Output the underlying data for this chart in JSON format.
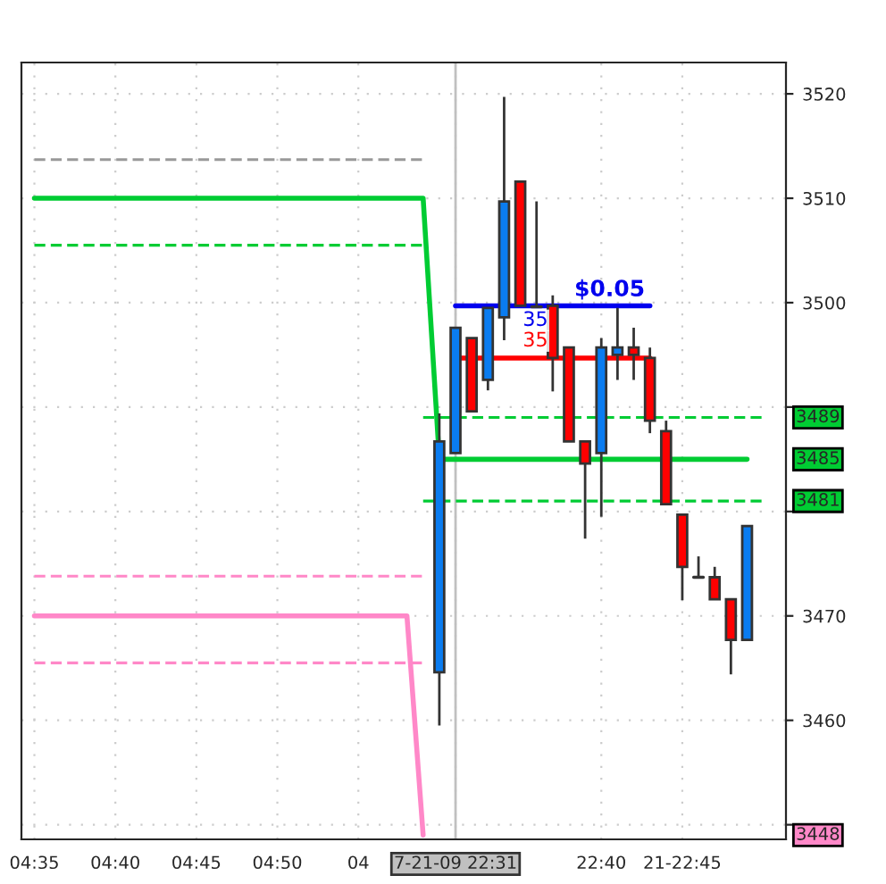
{
  "chart_data": {
    "type": "candlestick",
    "categories": [
      "04:35",
      null,
      null,
      null,
      null,
      "04:40",
      null,
      null,
      null,
      null,
      "04:45",
      null,
      null,
      null,
      null,
      "04:50",
      null,
      null,
      null,
      null,
      "04",
      null,
      null,
      null,
      null,
      null,
      "7-21-09 22:31",
      null,
      null,
      null,
      null,
      null,
      null,
      null,
      null,
      "22:40",
      null,
      null,
      null,
      null,
      "21-22:45",
      null,
      null,
      null,
      null,
      null
    ],
    "ohlc": [
      null,
      null,
      null,
      null,
      null,
      null,
      null,
      null,
      null,
      null,
      null,
      null,
      null,
      null,
      null,
      null,
      null,
      null,
      null,
      null,
      null,
      null,
      null,
      null,
      null,
      [
        3464.6,
        3489.4,
        3459.5,
        3486.7
      ],
      [
        3485.6,
        3497.6,
        3485.6,
        3497.6
      ],
      [
        3496.6,
        3496.6,
        3489.6,
        3489.6
      ],
      [
        3492.6,
        3499.5,
        3491.6,
        3499.5
      ],
      [
        3498.6,
        3519.7,
        3496.4,
        3509.7
      ],
      [
        3511.6,
        3511.6,
        3499.7,
        3499.7
      ],
      [
        3499.6,
        3509.7,
        3499.6,
        3499.6
      ],
      [
        3499.7,
        3500.7,
        3491.5,
        3494.7
      ],
      [
        3495.7,
        3495.7,
        3486.7,
        3486.7
      ],
      [
        3486.7,
        3486.7,
        3477.4,
        3484.6
      ],
      [
        3485.6,
        3496.6,
        3479.5,
        3495.7
      ],
      [
        3495.0,
        3499.5,
        3492.6,
        3495.7
      ],
      [
        3495.7,
        3497.6,
        3492.6,
        3495.0
      ],
      [
        3494.7,
        3495.7,
        3487.5,
        3488.7
      ],
      [
        3487.7,
        3488.7,
        3480.7,
        3480.7
      ],
      [
        3479.7,
        3479.7,
        3471.5,
        3474.7
      ],
      [
        3473.7,
        3475.7,
        3473.7,
        3473.7
      ],
      [
        3473.7,
        3474.7,
        3471.6,
        3471.6
      ],
      [
        3471.6,
        3471.6,
        3464.4,
        3467.7
      ],
      [
        3467.7,
        3478.6,
        3467.7,
        3478.6
      ],
      null
    ],
    "colors": [
      null,
      null,
      null,
      null,
      null,
      null,
      null,
      null,
      null,
      null,
      null,
      null,
      null,
      null,
      null,
      null,
      null,
      null,
      null,
      null,
      null,
      null,
      null,
      null,
      null,
      "#0a7cf0",
      "#0a7cf0",
      "#ff0000",
      "#0a7cf0",
      "#0a7cf0",
      "#ff0000",
      "#333333",
      "#ff0000",
      "#ff0000",
      "#ff0000",
      "#0a7cf0",
      "#0a7cf0",
      "#ff0000",
      "#ff0000",
      "#ff0000",
      "#ff0000",
      "#333333",
      "#ff0000",
      "#ff0000",
      "#0a7cf0",
      null
    ],
    "series": [
      {
        "type": "line",
        "color": "#00cc33",
        "values": [
          3510,
          3510,
          3510,
          3510,
          3510,
          3510,
          3510,
          3510,
          3510,
          3510,
          3510,
          3510,
          3510,
          3510,
          3510,
          3510,
          3510,
          3510,
          3510,
          3510,
          3510,
          3510,
          3510,
          3510,
          3510,
          3485,
          3485,
          3485,
          3485,
          3485,
          3485,
          3485,
          3485,
          3485,
          3485,
          3485,
          3485,
          3485,
          3485,
          3485,
          3485,
          3485,
          3485,
          3485,
          3485,
          null
        ]
      },
      {
        "type": "line",
        "color": "#ff88c8",
        "values": [
          3470,
          3470,
          3470,
          3470,
          3470,
          3470,
          3470,
          3470,
          3470,
          3470,
          3470,
          3470,
          3470,
          3470,
          3470,
          3470,
          3470,
          3470,
          3470,
          3470,
          3470,
          3470,
          3470,
          3470,
          3449,
          null,
          null,
          null,
          null,
          null,
          null,
          null,
          null,
          null,
          null,
          null,
          null,
          null,
          null,
          null,
          null,
          null,
          null,
          null,
          null,
          null
        ]
      },
      {
        "type": "line",
        "color": "#00cc33",
        "line_style": "dashed",
        "values": [
          3505.5,
          3505.5,
          3505.5,
          3505.5,
          3505.5,
          3505.5,
          3505.5,
          3505.5,
          3505.5,
          3505.5,
          3505.5,
          3505.5,
          3505.5,
          3505.5,
          3505.5,
          3505.5,
          3505.5,
          3505.5,
          3505.5,
          3505.5,
          3505.5,
          3505.5,
          3505.5,
          3505.5,
          3505.5,
          null,
          null,
          null,
          null,
          null,
          null,
          null,
          null,
          null,
          null,
          null,
          null,
          null,
          null,
          null,
          null,
          null,
          null,
          null,
          null,
          null
        ]
      },
      {
        "type": "line",
        "color": "#999999",
        "line_style": "dashed",
        "values": [
          3513.7,
          3513.7,
          3513.7,
          3513.7,
          3513.7,
          3513.7,
          3513.7,
          3513.7,
          3513.7,
          3513.7,
          3513.7,
          3513.7,
          3513.7,
          3513.7,
          3513.7,
          3513.7,
          3513.7,
          3513.7,
          3513.7,
          3513.7,
          3513.7,
          3513.7,
          3513.7,
          3513.7,
          3513.7,
          null,
          null,
          null,
          null,
          null,
          null,
          null,
          null,
          null,
          null,
          null,
          null,
          null,
          null,
          null,
          null,
          null,
          null,
          null,
          null,
          null
        ]
      },
      {
        "type": "line",
        "color": "#ff88c8",
        "line_style": "dashed",
        "values": [
          3473.8,
          3473.8,
          3473.8,
          3473.8,
          3473.8,
          3473.8,
          3473.8,
          3473.8,
          3473.8,
          3473.8,
          3473.8,
          3473.8,
          3473.8,
          3473.8,
          3473.8,
          3473.8,
          3473.8,
          3473.8,
          3473.8,
          3473.8,
          3473.8,
          3473.8,
          3473.8,
          3473.8,
          3473.8,
          null,
          null,
          null,
          null,
          null,
          null,
          null,
          null,
          null,
          null,
          null,
          null,
          null,
          null,
          null,
          null,
          null,
          null,
          null,
          null,
          null
        ]
      },
      {
        "type": "line",
        "color": "#ff88c8",
        "line_style": "dashed",
        "values": [
          3465.5,
          3465.5,
          3465.5,
          3465.5,
          3465.5,
          3465.5,
          3465.5,
          3465.5,
          3465.5,
          3465.5,
          3465.5,
          3465.5,
          3465.5,
          3465.5,
          3465.5,
          3465.5,
          3465.5,
          3465.5,
          3465.5,
          3465.5,
          3465.5,
          3465.5,
          3465.5,
          3465.5,
          3465.5,
          null,
          null,
          null,
          null,
          null,
          null,
          null,
          null,
          null,
          null,
          null,
          null,
          null,
          null,
          null,
          null,
          null,
          null,
          null,
          null,
          null
        ]
      },
      {
        "type": "line",
        "color": "#00cc33",
        "line_style": "dashed",
        "values": [
          null,
          null,
          null,
          null,
          null,
          null,
          null,
          null,
          null,
          null,
          null,
          null,
          null,
          null,
          null,
          null,
          null,
          null,
          null,
          null,
          null,
          null,
          null,
          null,
          3489,
          3489,
          3489,
          3489,
          3489,
          3489,
          3489,
          3489,
          3489,
          3489,
          3489,
          3489,
          3489,
          3489,
          3489,
          3489,
          3489,
          3489,
          3489,
          3489,
          3489,
          3489
        ]
      },
      {
        "type": "line",
        "color": "#00cc33",
        "line_style": "dashed",
        "values": [
          null,
          null,
          null,
          null,
          null,
          null,
          null,
          null,
          null,
          null,
          null,
          null,
          null,
          null,
          null,
          null,
          null,
          null,
          null,
          null,
          null,
          null,
          null,
          null,
          3481,
          3481,
          3481,
          3481,
          3481,
          3481,
          3481,
          3481,
          3481,
          3481,
          3481,
          3481,
          3481,
          3481,
          3481,
          3481,
          3481,
          3481,
          3481,
          3481,
          3481,
          3481
        ]
      },
      {
        "type": "line",
        "color": "#0000ee",
        "values": [
          null,
          null,
          null,
          null,
          null,
          null,
          null,
          null,
          null,
          null,
          null,
          null,
          null,
          null,
          null,
          null,
          null,
          null,
          null,
          null,
          null,
          null,
          null,
          null,
          null,
          null,
          3499.7,
          3499.7,
          3499.7,
          3499.7,
          3499.7,
          3499.7,
          3499.7,
          3499.7,
          3499.7,
          3499.7,
          3499.7,
          3499.7,
          3499.7,
          null,
          null,
          null,
          null,
          null,
          null,
          null
        ]
      },
      {
        "type": "line",
        "color": "#ff0000",
        "values": [
          null,
          null,
          null,
          null,
          null,
          null,
          null,
          null,
          null,
          null,
          null,
          null,
          null,
          null,
          null,
          null,
          null,
          null,
          null,
          null,
          null,
          null,
          null,
          null,
          null,
          null,
          3494.7,
          3494.7,
          3494.7,
          3494.7,
          3494.7,
          3494.7,
          3494.7,
          3494.7,
          3494.7,
          3494.7,
          3494.7,
          3494.7,
          3494.7,
          null,
          null,
          null,
          null,
          null,
          null,
          null
        ]
      }
    ],
    "annotations": [
      "$0.05",
      "35",
      "35",
      "3489",
      "3485",
      "3481",
      "3448"
    ],
    "ref_lines": [
      {
        "axis": "x",
        "value": "7-21-09 22:31",
        "color": "#c0c0c0"
      }
    ],
    "ylim": [
      3448.6,
      3523
    ],
    "yticks": [
      {
        "value": 3450,
        "label": null
      },
      3460,
      3470,
      {
        "value": 3480,
        "label": null
      },
      {
        "value": 3490,
        "label": null
      },
      3500,
      3510,
      3520
    ],
    "grid": true
  }
}
